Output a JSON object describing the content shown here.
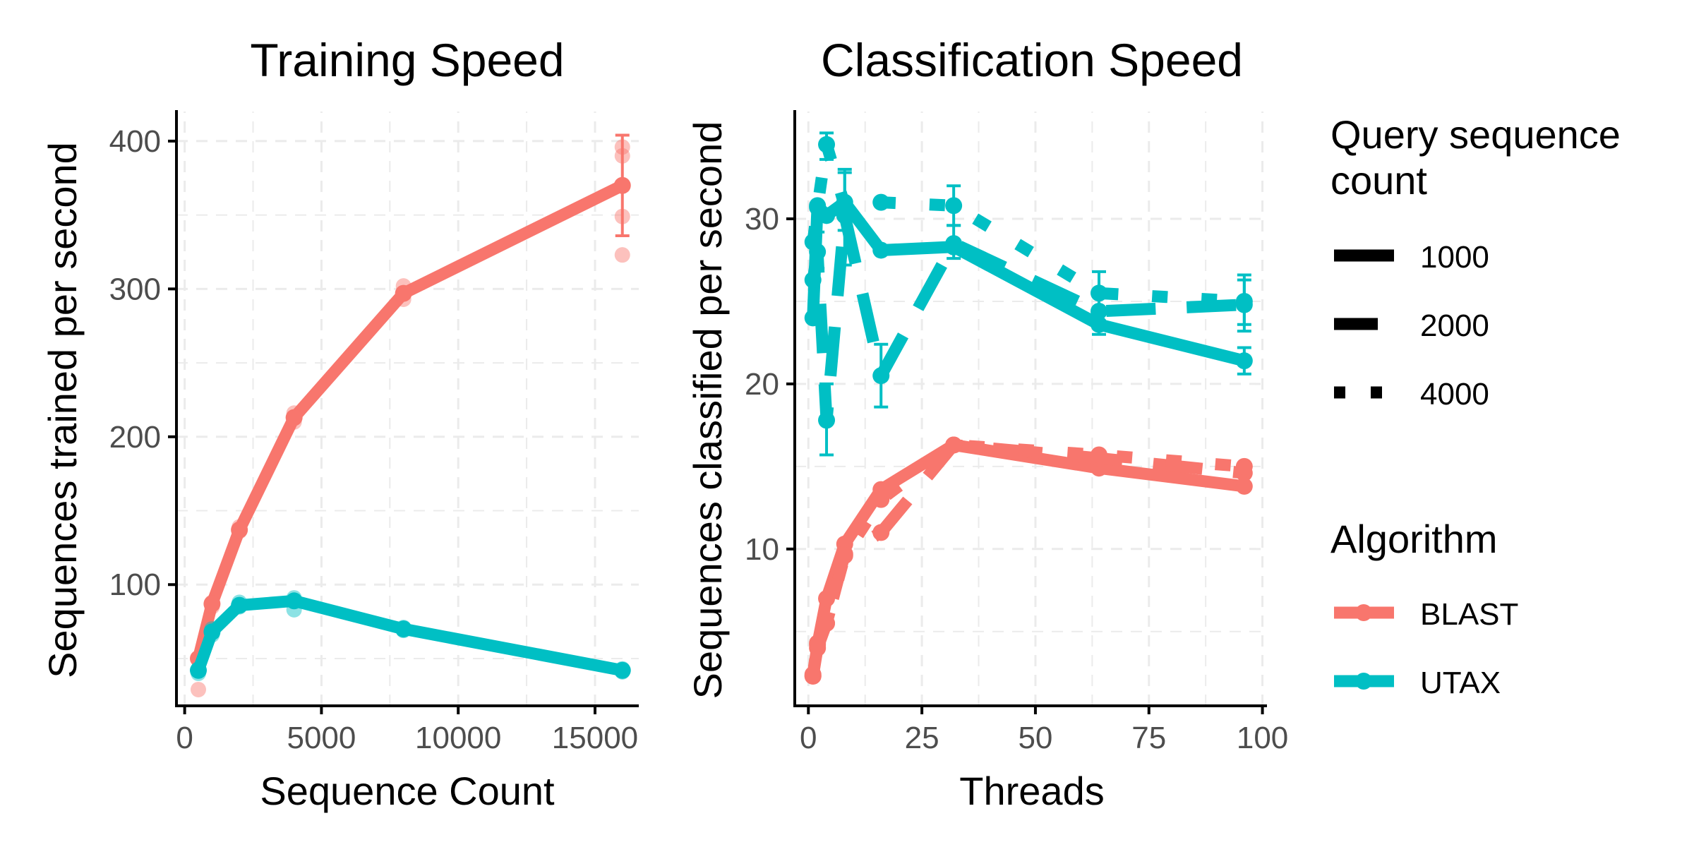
{
  "colors": {
    "BLAST": "#F8766D",
    "UTAX": "#00BFC4",
    "axis": "#000000",
    "tick_text": "#4D4D4D",
    "grid": "#EBEBEB"
  },
  "legend": {
    "linetype_title": "Query sequence count",
    "linetype_title_lines": [
      "Query sequence",
      "count"
    ],
    "linetype_entries": [
      {
        "label": "1000",
        "dash": "solid"
      },
      {
        "label": "2000",
        "dash": "dashed"
      },
      {
        "label": "4000",
        "dash": "dotted"
      }
    ],
    "color_title": "Algorithm",
    "color_entries": [
      {
        "label": "BLAST",
        "color": "#F8766D"
      },
      {
        "label": "UTAX",
        "color": "#00BFC4"
      }
    ]
  },
  "chart_data": [
    {
      "type": "line",
      "title": "Training Speed",
      "xlabel": "Sequence Count",
      "ylabel": "Sequences trained per second",
      "xlim": [
        0,
        16000
      ],
      "ylim": [
        30,
        400
      ],
      "xticks": [
        0,
        5000,
        10000,
        15000
      ],
      "xtick_labels": [
        "0",
        "5000",
        "10000",
        "15000"
      ],
      "yticks": [
        100,
        200,
        300,
        400
      ],
      "ytick_labels": [
        "100",
        "200",
        "300",
        "400"
      ],
      "grid": true,
      "series": [
        {
          "name": "BLAST",
          "mean": [
            {
              "x": 500,
              "y": 50
            },
            {
              "x": 1000,
              "y": 87
            },
            {
              "x": 2000,
              "y": 137
            },
            {
              "x": 4000,
              "y": 213
            },
            {
              "x": 8000,
              "y": 297
            },
            {
              "x": 16000,
              "y": 370
            }
          ],
          "error": [
            {
              "x": 16000,
              "low": 336,
              "high": 404
            }
          ],
          "points": [
            {
              "x": 500,
              "y": 50
            },
            {
              "x": 500,
              "y": 29
            },
            {
              "x": 1000,
              "y": 88
            },
            {
              "x": 1000,
              "y": 85
            },
            {
              "x": 2000,
              "y": 139
            },
            {
              "x": 2000,
              "y": 136
            },
            {
              "x": 4000,
              "y": 216
            },
            {
              "x": 4000,
              "y": 210
            },
            {
              "x": 8000,
              "y": 302
            },
            {
              "x": 8000,
              "y": 293
            },
            {
              "x": 16000,
              "y": 396
            },
            {
              "x": 16000,
              "y": 390
            },
            {
              "x": 16000,
              "y": 349
            },
            {
              "x": 16000,
              "y": 323
            }
          ]
        },
        {
          "name": "UTAX",
          "mean": [
            {
              "x": 500,
              "y": 42
            },
            {
              "x": 1000,
              "y": 68
            },
            {
              "x": 2000,
              "y": 86
            },
            {
              "x": 4000,
              "y": 89
            },
            {
              "x": 8000,
              "y": 70
            },
            {
              "x": 16000,
              "y": 42
            }
          ],
          "error": [],
          "points": [
            {
              "x": 500,
              "y": 43
            },
            {
              "x": 500,
              "y": 40
            },
            {
              "x": 1000,
              "y": 70
            },
            {
              "x": 1000,
              "y": 66
            },
            {
              "x": 2000,
              "y": 88
            },
            {
              "x": 2000,
              "y": 85
            },
            {
              "x": 4000,
              "y": 91
            },
            {
              "x": 4000,
              "y": 83
            },
            {
              "x": 8000,
              "y": 71
            },
            {
              "x": 8000,
              "y": 69
            },
            {
              "x": 16000,
              "y": 43
            },
            {
              "x": 16000,
              "y": 41
            }
          ]
        }
      ]
    },
    {
      "type": "line",
      "title": "Classification Speed",
      "xlabel": "Threads",
      "ylabel": "Sequences classified per second",
      "xlim": [
        0,
        100
      ],
      "ylim": [
        2,
        36
      ],
      "xticks": [
        0,
        25,
        50,
        75,
        100
      ],
      "xtick_labels": [
        "0",
        "25",
        "50",
        "75",
        "100"
      ],
      "yticks": [
        10,
        20,
        30
      ],
      "ytick_labels": [
        "10",
        "20",
        "30"
      ],
      "grid": true,
      "series": [
        {
          "name": "BLAST",
          "query_count": "1000",
          "mean": [
            {
              "x": 1,
              "y": 2.3
            },
            {
              "x": 2,
              "y": 4.2
            },
            {
              "x": 4,
              "y": 7.0
            },
            {
              "x": 8,
              "y": 10.3
            },
            {
              "x": 16,
              "y": 13.6
            },
            {
              "x": 32,
              "y": 16.3
            },
            {
              "x": 64,
              "y": 14.9
            },
            {
              "x": 96,
              "y": 13.8
            }
          ],
          "error": []
        },
        {
          "name": "BLAST",
          "query_count": "2000",
          "mean": [
            {
              "x": 1,
              "y": 2.3
            },
            {
              "x": 2,
              "y": 4.0
            },
            {
              "x": 4,
              "y": 5.5
            },
            {
              "x": 8,
              "y": 9.7
            },
            {
              "x": 16,
              "y": 11.0
            },
            {
              "x": 32,
              "y": 16.3
            },
            {
              "x": 64,
              "y": 15.5
            },
            {
              "x": 96,
              "y": 14.6
            }
          ],
          "error": []
        },
        {
          "name": "BLAST",
          "query_count": "4000",
          "mean": [
            {
              "x": 1,
              "y": 2.4
            },
            {
              "x": 2,
              "y": 4.3
            },
            {
              "x": 4,
              "y": 5.5
            },
            {
              "x": 8,
              "y": 9.6
            },
            {
              "x": 16,
              "y": 13.0
            },
            {
              "x": 32,
              "y": 16.3
            },
            {
              "x": 64,
              "y": 15.7
            },
            {
              "x": 96,
              "y": 15.0
            }
          ],
          "error": []
        },
        {
          "name": "UTAX",
          "query_count": "1000",
          "mean": [
            {
              "x": 1,
              "y": 24.0
            },
            {
              "x": 2,
              "y": 30.8
            },
            {
              "x": 4,
              "y": 30.2
            },
            {
              "x": 8,
              "y": 31.0
            },
            {
              "x": 16,
              "y": 28.1
            },
            {
              "x": 32,
              "y": 28.3
            },
            {
              "x": 64,
              "y": 23.6
            },
            {
              "x": 96,
              "y": 21.4
            }
          ],
          "error": [
            {
              "x": 8,
              "low": 29.3,
              "high": 32.8
            },
            {
              "x": 64,
              "low": 23.0,
              "high": 24.2
            },
            {
              "x": 96,
              "low": 20.6,
              "high": 22.2
            }
          ]
        },
        {
          "name": "UTAX",
          "query_count": "2000",
          "mean": [
            {
              "x": 1,
              "y": 26.3
            },
            {
              "x": 2,
              "y": 28.0
            },
            {
              "x": 4,
              "y": 17.8
            },
            {
              "x": 8,
              "y": 30.2
            },
            {
              "x": 16,
              "y": 20.5
            },
            {
              "x": 32,
              "y": 28.5
            },
            {
              "x": 64,
              "y": 24.4
            },
            {
              "x": 96,
              "y": 24.8
            }
          ],
          "error": [
            {
              "x": 2,
              "low": 27.0,
              "high": 29.2
            },
            {
              "x": 4,
              "low": 15.7,
              "high": 20.0
            },
            {
              "x": 8,
              "low": 27.2,
              "high": 33.0
            },
            {
              "x": 16,
              "low": 18.6,
              "high": 22.4
            },
            {
              "x": 32,
              "low": 27.6,
              "high": 29.6
            },
            {
              "x": 96,
              "low": 23.2,
              "high": 26.3
            }
          ]
        },
        {
          "name": "UTAX",
          "query_count": "4000",
          "mean": [
            {
              "x": 1,
              "y": 28.6
            },
            {
              "x": 2,
              "y": 30.7
            },
            {
              "x": 4,
              "y": 34.5
            },
            {
              "x": 8,
              "y": 30.8
            },
            {
              "x": 16,
              "y": 31.0
            },
            {
              "x": 32,
              "y": 30.8
            },
            {
              "x": 64,
              "y": 25.5
            },
            {
              "x": 96,
              "y": 25.0
            }
          ],
          "error": [
            {
              "x": 4,
              "low": 33.6,
              "high": 35.2
            },
            {
              "x": 32,
              "low": 29.6,
              "high": 32.0
            },
            {
              "x": 64,
              "low": 24.3,
              "high": 26.8
            },
            {
              "x": 96,
              "low": 23.6,
              "high": 26.6
            }
          ]
        }
      ]
    }
  ]
}
